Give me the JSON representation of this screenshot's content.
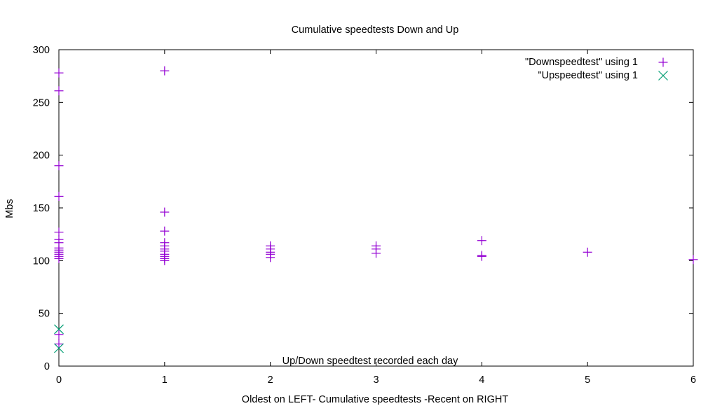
{
  "chart_data": {
    "type": "scatter",
    "title": "Cumulative speedtests Down and Up",
    "xlabel": "Oldest on LEFT- Cumulative speedtests -Recent on RIGHT",
    "ylabel": "Mbs",
    "annotation": "Up/Down speedtest recorded each day",
    "xlim": [
      0,
      6
    ],
    "ylim": [
      0,
      300
    ],
    "xticks": [
      0,
      1,
      2,
      3,
      4,
      5,
      6
    ],
    "yticks": [
      0,
      50,
      100,
      150,
      200,
      250,
      300
    ],
    "grid": false,
    "legend_position": "top-right",
    "series": [
      {
        "name": "\"Downspeedtest\" using 1",
        "marker": "plus",
        "color": "#9400d3",
        "points": [
          [
            0,
            278
          ],
          [
            0,
            261
          ],
          [
            0,
            190
          ],
          [
            0,
            161
          ],
          [
            0,
            127
          ],
          [
            0,
            120
          ],
          [
            0,
            117
          ],
          [
            0,
            112
          ],
          [
            0,
            110
          ],
          [
            0,
            108
          ],
          [
            0,
            106
          ],
          [
            0,
            104
          ],
          [
            0,
            102
          ],
          [
            0,
            30
          ],
          [
            0,
            21
          ],
          [
            1,
            280
          ],
          [
            1,
            146
          ],
          [
            1,
            128
          ],
          [
            1,
            117
          ],
          [
            1,
            114
          ],
          [
            1,
            111
          ],
          [
            1,
            109
          ],
          [
            1,
            106
          ],
          [
            1,
            104
          ],
          [
            1,
            102
          ],
          [
            1,
            100
          ],
          [
            2,
            114
          ],
          [
            2,
            111
          ],
          [
            2,
            108
          ],
          [
            2,
            106
          ],
          [
            2,
            103
          ],
          [
            3,
            114
          ],
          [
            3,
            111
          ],
          [
            3,
            107
          ],
          [
            4,
            119
          ],
          [
            4,
            105
          ],
          [
            4,
            104
          ],
          [
            5,
            108
          ],
          [
            6,
            101
          ]
        ]
      },
      {
        "name": "\"Upspeedtest\" using 1",
        "marker": "cross",
        "color": "#009e73",
        "points": [
          [
            0,
            35
          ],
          [
            0,
            17
          ]
        ]
      }
    ]
  }
}
